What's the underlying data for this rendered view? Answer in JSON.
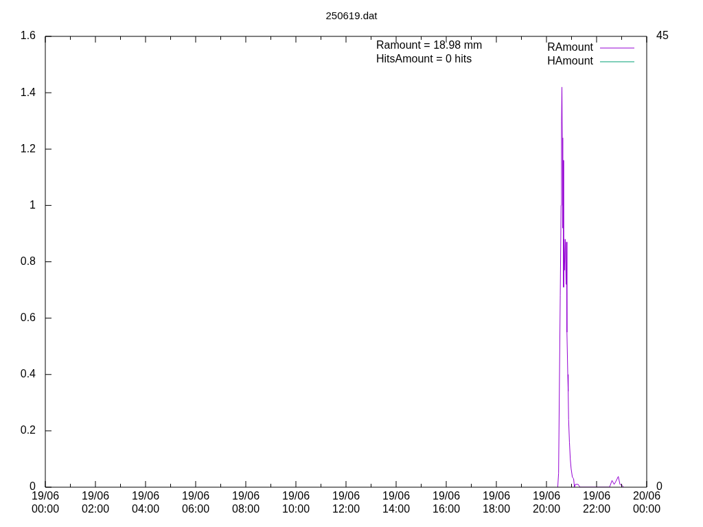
{
  "chart_data": {
    "type": "line",
    "title": "250619.dat",
    "annotations": [
      "Ramount = 18.98 mm",
      "HitsAmount = 0 hits"
    ],
    "xlim": [
      "--06-19T00:00",
      "--06-20T00:00"
    ],
    "xticks": [
      {
        "value": "--06-19T00:00",
        "label": "19/06\n00:00"
      },
      {
        "value": "--06-19T01:00",
        "label": null
      },
      {
        "value": "--06-19T02:00",
        "label": "19/06\n02:00"
      },
      {
        "value": "--06-19T03:00",
        "label": null
      },
      {
        "value": "--06-19T04:00",
        "label": "19/06\n04:00"
      },
      {
        "value": "--06-19T05:00",
        "label": null
      },
      {
        "value": "--06-19T06:00",
        "label": "19/06\n06:00"
      },
      {
        "value": "--06-19T07:00",
        "label": null
      },
      {
        "value": "--06-19T08:00",
        "label": "19/06\n08:00"
      },
      {
        "value": "--06-19T09:00",
        "label": null
      },
      {
        "value": "--06-19T10:00",
        "label": "19/06\n10:00"
      },
      {
        "value": "--06-19T11:00",
        "label": null
      },
      {
        "value": "--06-19T12:00",
        "label": "19/06\n12:00"
      },
      {
        "value": "--06-19T13:00",
        "label": null
      },
      {
        "value": "--06-19T14:00",
        "label": "19/06\n14:00"
      },
      {
        "value": "--06-19T15:00",
        "label": null
      },
      {
        "value": "--06-19T16:00",
        "label": "19/06\n16:00"
      },
      {
        "value": "--06-19T17:00",
        "label": null
      },
      {
        "value": "--06-19T18:00",
        "label": "19/06\n18:00"
      },
      {
        "value": "--06-19T19:00",
        "label": null
      },
      {
        "value": "--06-19T20:00",
        "label": "19/06\n20:00"
      },
      {
        "value": "--06-19T21:00",
        "label": null
      },
      {
        "value": "--06-19T22:00",
        "label": "19/06\n22:00"
      },
      {
        "value": "--06-19T23:00",
        "label": null
      },
      {
        "value": "--06-20T00:00",
        "label": "20/06\n00:00"
      }
    ],
    "ylim": [
      0,
      1.6
    ],
    "yticks": [
      0,
      0.2,
      0.4,
      0.6,
      0.8,
      1,
      1.2,
      1.4,
      1.6
    ],
    "y2lim": [
      0,
      45
    ],
    "y2ticks": [
      0,
      45
    ],
    "legend": "top right",
    "series": [
      {
        "name": "RAmount",
        "color": "#9400d3",
        "x": [
          "--06-19T20:27",
          "--06-19T20:29",
          "--06-19T20:33",
          "--06-19T20:35",
          "--06-19T20:36",
          "--06-19T20:37",
          "--06-19T20:38",
          "--06-19T20:39",
          "--06-19T20:40",
          "--06-19T20:41",
          "--06-19T20:42",
          "--06-19T20:43",
          "--06-19T20:45",
          "--06-19T20:47",
          "--06-19T20:48",
          "--06-19T20:49",
          "--06-19T20:51",
          "--06-19T20:52",
          "--06-19T20:53",
          "--06-19T20:55",
          "--06-19T20:57",
          "--06-19T20:59",
          "--06-19T21:02",
          "--06-19T21:05",
          "--06-19T21:07",
          "--06-19T21:09",
          "--06-19T21:16",
          "--06-19T21:20",
          "--06-19T22:31",
          "--06-19T22:37",
          "--06-19T22:42",
          "--06-19T22:46",
          "--06-19T22:52",
          "--06-19T22:56",
          "--06-19T23:02",
          "--06-19T23:04"
        ],
        "values": [
          0,
          0.05,
          0.68,
          1.0,
          1.3,
          1.42,
          1.24,
          0.92,
          1.16,
          0.71,
          0.88,
          0.77,
          0.88,
          0.72,
          0.87,
          0.55,
          0.4,
          0.34,
          0.24,
          0.16,
          0.1,
          0.066,
          0.036,
          0.03,
          0,
          0.01,
          0.01,
          0,
          0,
          0.024,
          0.01,
          0.02,
          0.038,
          0.01,
          0.005,
          0
        ]
      },
      {
        "name": "HAmount",
        "color": "#009e73"
      }
    ]
  }
}
